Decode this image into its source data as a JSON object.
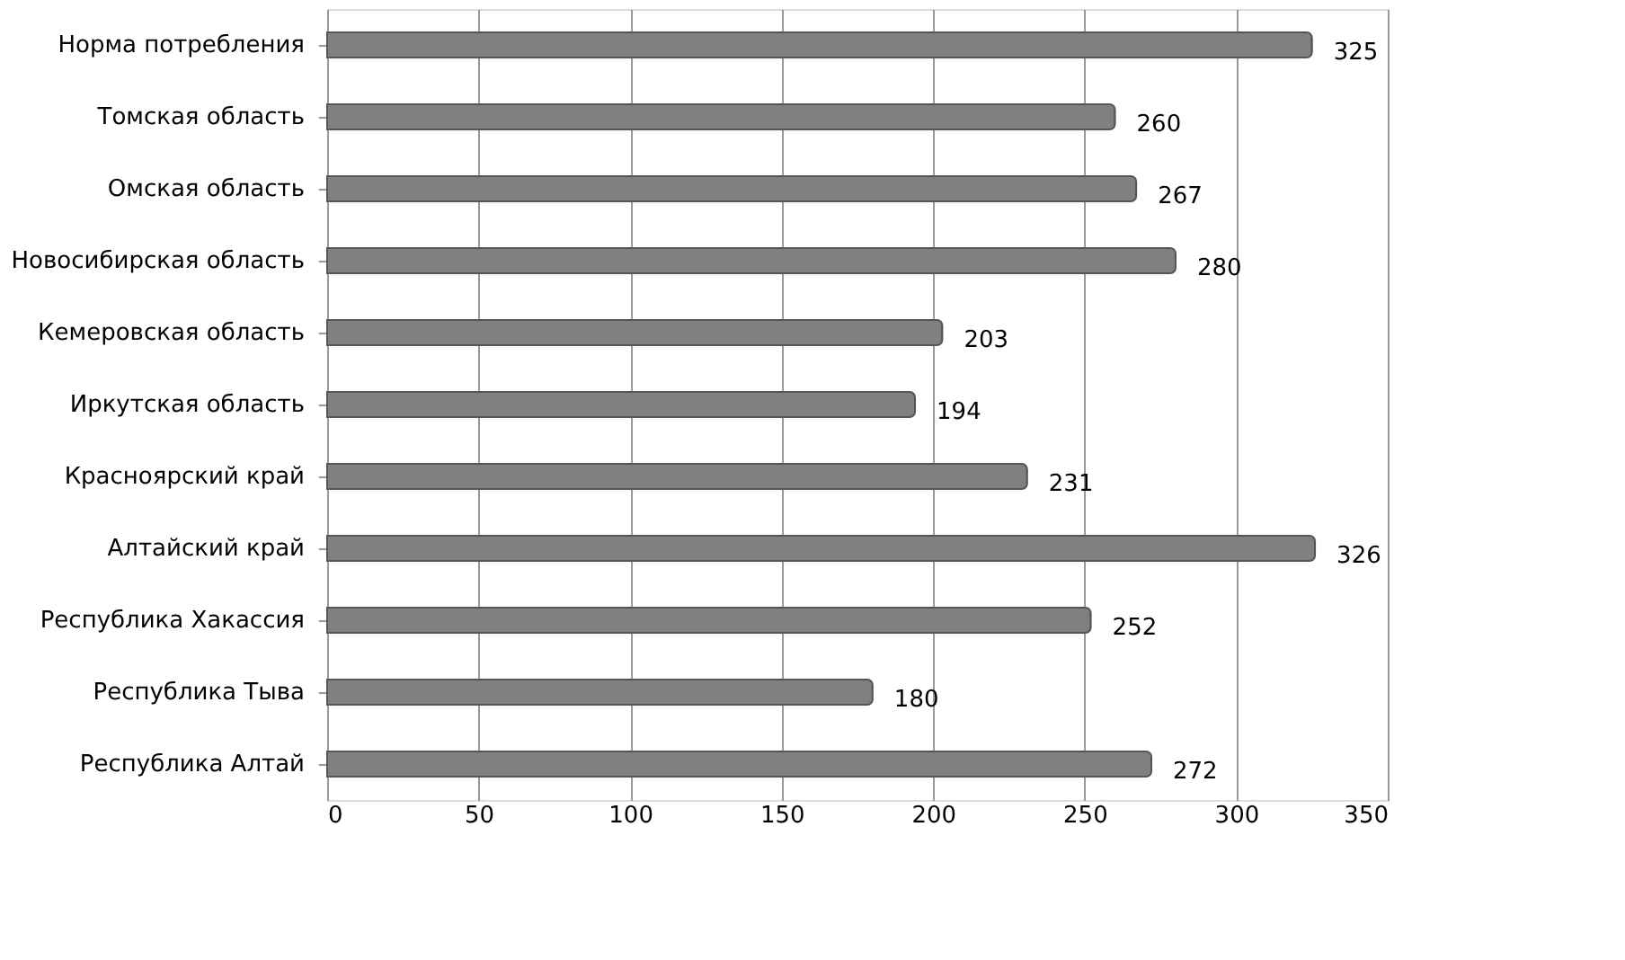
{
  "chart_data": {
    "type": "bar",
    "orientation": "horizontal",
    "categories": [
      "Норма потребления",
      "Томская область",
      "Омская область",
      "Новосибирская область",
      "Кемеровская область",
      "Иркутская область",
      "Красноярский край",
      "Алтайский край",
      "Республика Хакассия",
      "Республика Тыва",
      "Республика Алтай"
    ],
    "values": [
      325,
      260,
      267,
      280,
      203,
      194,
      231,
      326,
      252,
      180,
      272
    ],
    "color": "#808080",
    "data_labels": true,
    "grid": "x",
    "xlim": [
      0,
      350
    ],
    "xticks": [
      0,
      50,
      100,
      150,
      200,
      250,
      300,
      350
    ]
  }
}
